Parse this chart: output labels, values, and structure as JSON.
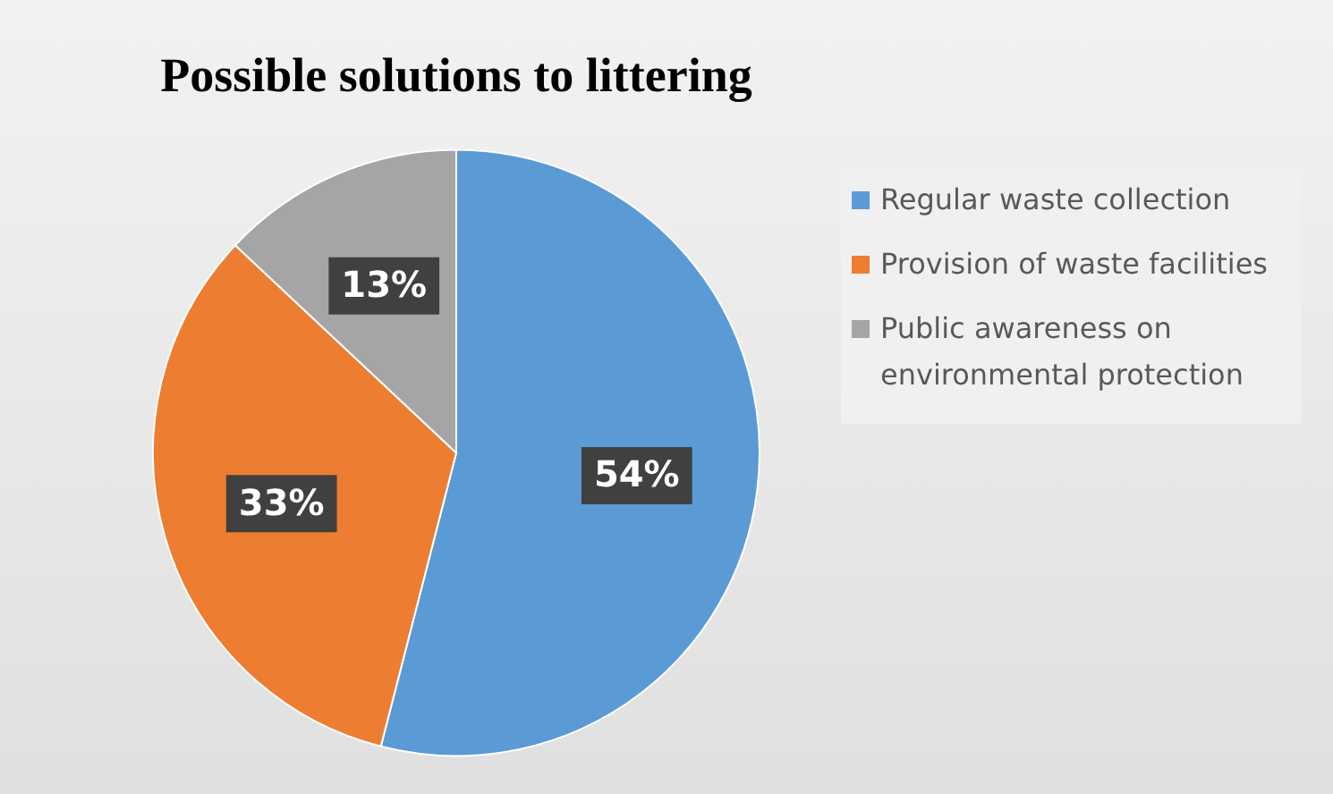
{
  "chart_data": {
    "type": "pie",
    "title": "Possible solutions to littering",
    "categories": [
      "Regular waste collection",
      "Provision of waste facilities",
      "Public awareness on environmental protection"
    ],
    "values": [
      54,
      33,
      13
    ],
    "colors": [
      "#5b9bd5",
      "#ed7d31",
      "#a5a5a5"
    ],
    "value_labels": [
      "54%",
      "33%",
      "13%"
    ],
    "legend": "right"
  }
}
